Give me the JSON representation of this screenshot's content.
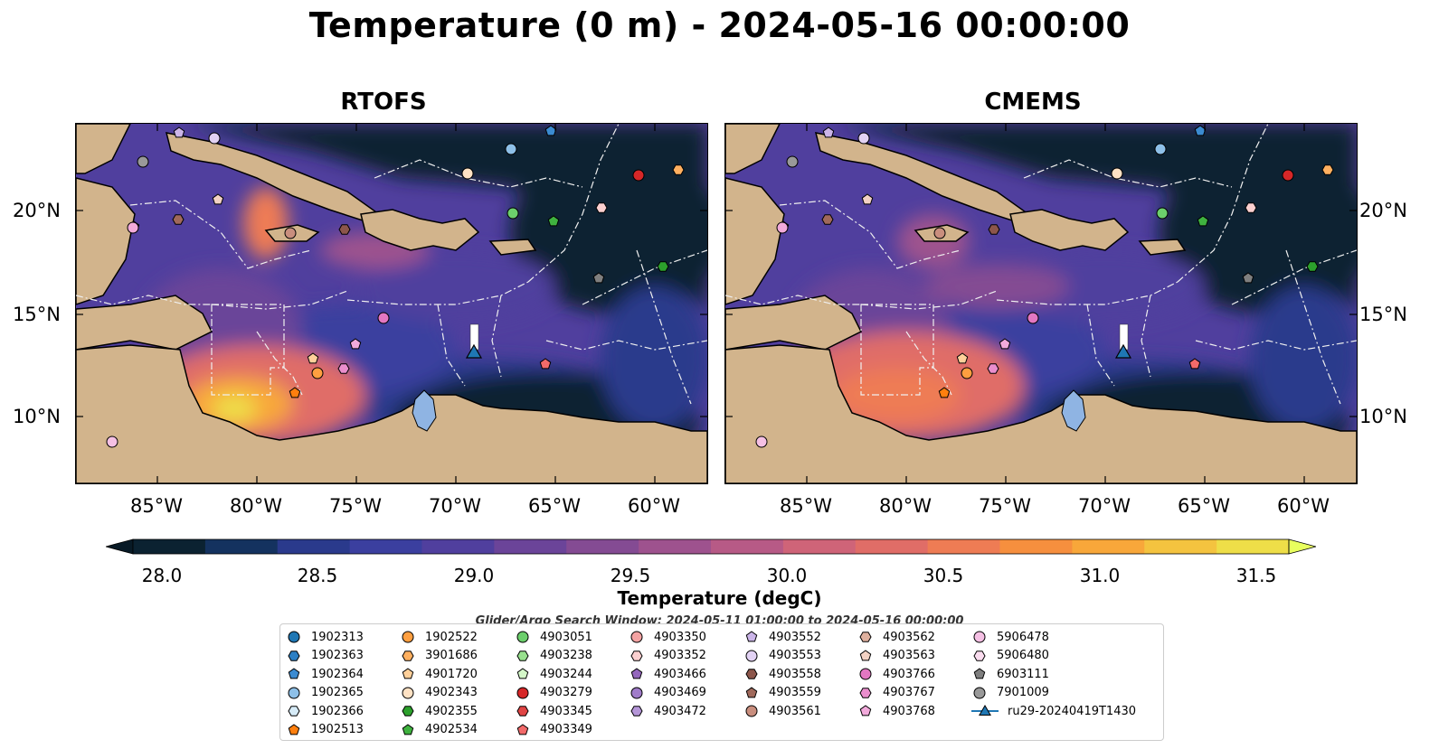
{
  "title": "Temperature (0 m) - 2024-05-16 00:00:00",
  "panels": [
    {
      "name": "RTOFS"
    },
    {
      "name": "CMEMS"
    }
  ],
  "lat_labels": [
    "20°N",
    "15°N",
    "10°N"
  ],
  "lon_labels": [
    "85°W",
    "80°W",
    "75°W",
    "70°W",
    "65°W",
    "60°W"
  ],
  "colorbar": {
    "label": "Temperature (degC)",
    "ticks": [
      "28.0",
      "28.5",
      "29.0",
      "29.5",
      "30.0",
      "30.5",
      "31.0",
      "31.5"
    ],
    "min": 28.0,
    "max": 31.5,
    "extend": "both",
    "colors": [
      "#0b2231",
      "#14325f",
      "#2a3a8c",
      "#3b3f9f",
      "#503f9e",
      "#6b4499",
      "#844b93",
      "#9e528e",
      "#b75a86",
      "#cf6478",
      "#e06d67",
      "#ee7c54",
      "#f68f3e",
      "#f8a73a",
      "#f4c33f",
      "#eede48"
    ],
    "under_color": "#081a26",
    "over_color": "#e8ff5e"
  },
  "search_window": "Glider/Argo Search Window: 2024-05-11 01:00:00 to 2024-05-16 00:00:00",
  "legend": [
    [
      {
        "label": "1902313",
        "marker": "circle",
        "color": "#1f77b4"
      },
      {
        "label": "1902363",
        "marker": "hexagon",
        "color": "#2c7fc4"
      },
      {
        "label": "1902364",
        "marker": "pentagon",
        "color": "#3b8bd1"
      },
      {
        "label": "1902365",
        "marker": "circle",
        "color": "#8ec0e8"
      },
      {
        "label": "1902366",
        "marker": "hexagon",
        "color": "#d6ebf7"
      },
      {
        "label": "1902513",
        "marker": "pentagon",
        "color": "#ff7f0e"
      }
    ],
    [
      {
        "label": "1902522",
        "marker": "circle",
        "color": "#ff9f40"
      },
      {
        "label": "3901686",
        "marker": "hexagon",
        "color": "#ffb060"
      },
      {
        "label": "4901720",
        "marker": "pentagon",
        "color": "#ffd09a"
      },
      {
        "label": "4902343",
        "marker": "circle",
        "color": "#ffe2c4"
      },
      {
        "label": "4902355",
        "marker": "hexagon",
        "color": "#2ca02c"
      },
      {
        "label": "4902534",
        "marker": "pentagon",
        "color": "#3fb23f"
      }
    ],
    [
      {
        "label": "4903051",
        "marker": "circle",
        "color": "#6ccf6c"
      },
      {
        "label": "4903238",
        "marker": "hexagon",
        "color": "#98e08e"
      },
      {
        "label": "4903244",
        "marker": "pentagon",
        "color": "#d4f7c8"
      },
      {
        "label": "4903279",
        "marker": "circle",
        "color": "#d62728"
      },
      {
        "label": "4903345",
        "marker": "hexagon",
        "color": "#e04444"
      },
      {
        "label": "4903349",
        "marker": "pentagon",
        "color": "#f26a6a"
      }
    ],
    [
      {
        "label": "4903350",
        "marker": "circle",
        "color": "#f4a3a3"
      },
      {
        "label": "4903352",
        "marker": "hexagon",
        "color": "#fbd0d0"
      },
      {
        "label": "4903466",
        "marker": "pentagon",
        "color": "#9467bd"
      },
      {
        "label": "4903469",
        "marker": "circle",
        "color": "#a07cc9"
      },
      {
        "label": "4903472",
        "marker": "hexagon",
        "color": "#b596d8"
      }
    ],
    [
      {
        "label": "4903552",
        "marker": "pentagon",
        "color": "#cbb5e8"
      },
      {
        "label": "4903553",
        "marker": "circle",
        "color": "#e2d2f4"
      },
      {
        "label": "4903558",
        "marker": "hexagon",
        "color": "#8c564b"
      },
      {
        "label": "4903559",
        "marker": "pentagon",
        "color": "#a0695b"
      },
      {
        "label": "4903561",
        "marker": "circle",
        "color": "#c98e7e"
      }
    ],
    [
      {
        "label": "4903562",
        "marker": "hexagon",
        "color": "#deb09e"
      },
      {
        "label": "4903563",
        "marker": "pentagon",
        "color": "#f3d2c4"
      },
      {
        "label": "4903766",
        "marker": "circle",
        "color": "#e377c2"
      },
      {
        "label": "4903767",
        "marker": "hexagon",
        "color": "#ea8ecd"
      },
      {
        "label": "4903768",
        "marker": "pentagon",
        "color": "#f2aadb"
      }
    ],
    [
      {
        "label": "5906478",
        "marker": "circle",
        "color": "#f5c0e4"
      },
      {
        "label": "5906480",
        "marker": "hexagon",
        "color": "#fadcef"
      },
      {
        "label": "6903111",
        "marker": "pentagon",
        "color": "#7f7f7f"
      },
      {
        "label": "7901009",
        "marker": "circle",
        "color": "#999999"
      },
      {
        "label": "ru29-20240419T1430",
        "marker": "triangle-line",
        "color": "#1f77b4"
      }
    ]
  ],
  "colors": {
    "land": "#d2b48c",
    "ocean_cold": "#0b2231",
    "glider": "#1f77b4",
    "lake": "#8fb4e3"
  }
}
